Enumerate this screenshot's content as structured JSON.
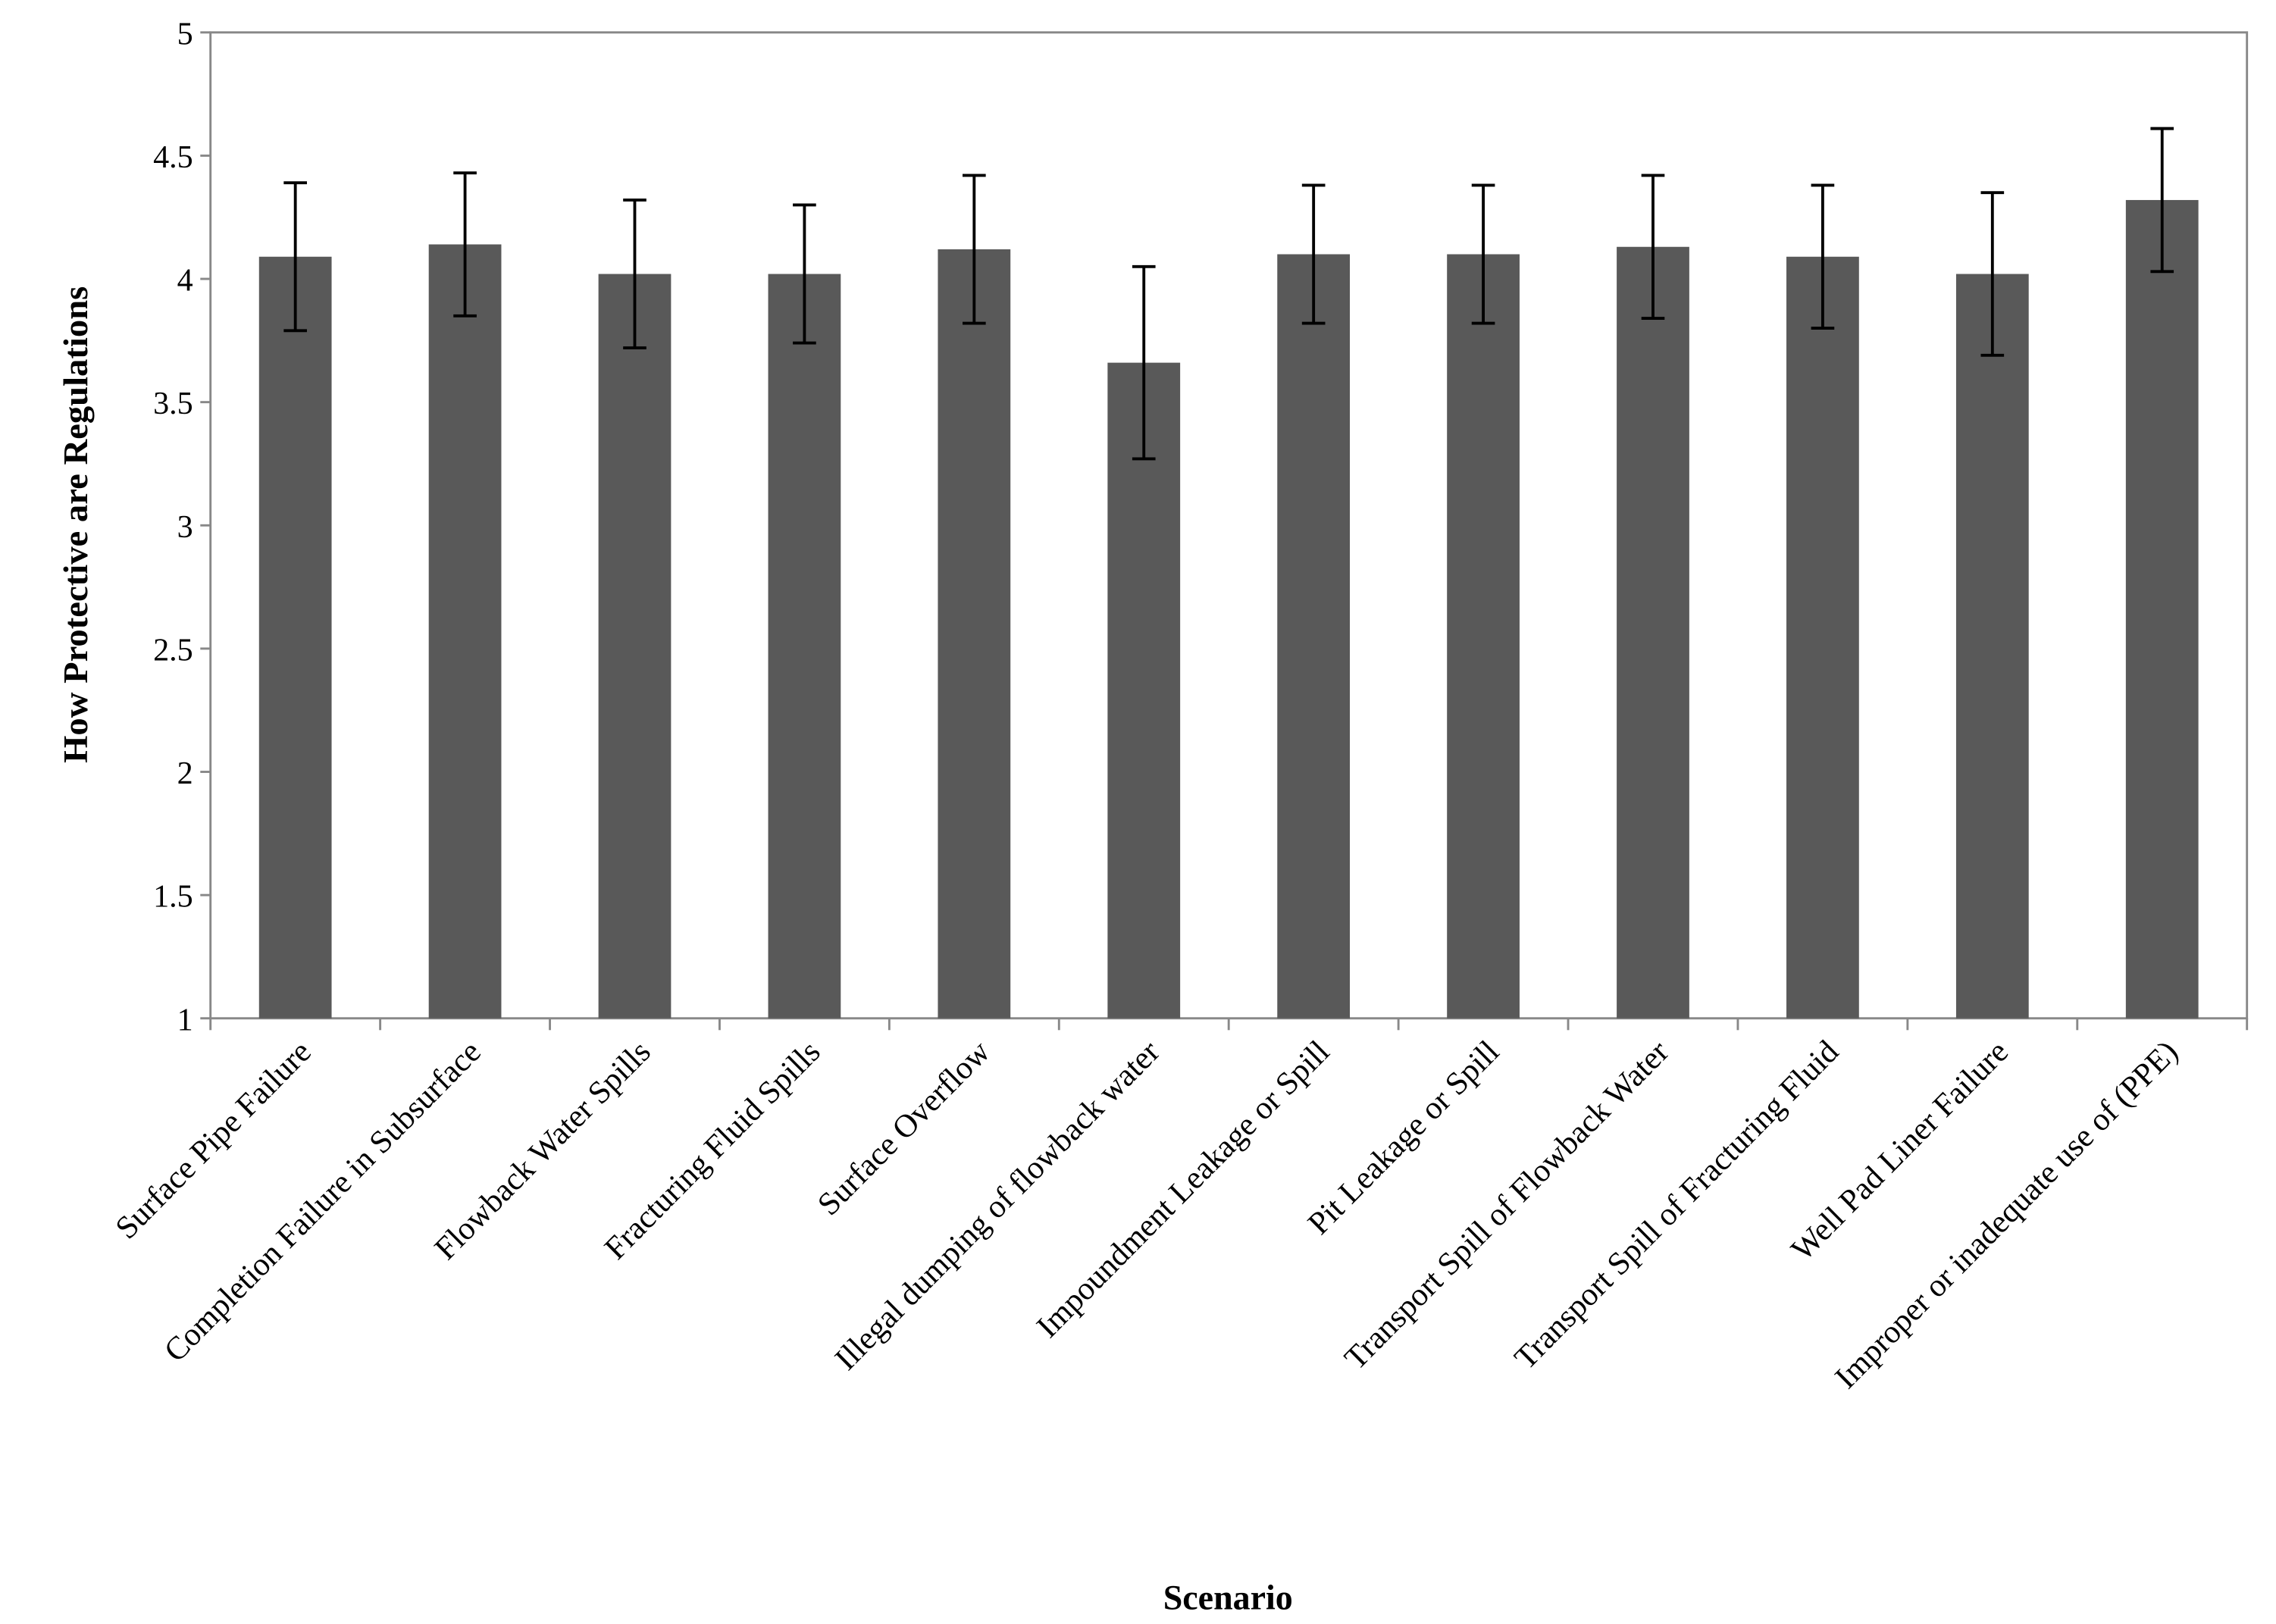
{
  "chart_data": {
    "type": "bar",
    "x_label": "Scenario",
    "y_label": "How Protective are Regulations",
    "categories": [
      "Surface Pipe Failure",
      "Completion Failure in Subsurface",
      "Flowback Water Spills",
      "Fracturing Fluid Spills",
      "Surface Overflow",
      "Illegal dumping of flowback water",
      "Impoundment Leakage or Spill",
      "Pit Leakage or Spill",
      "Transport Spill of Flowback Water",
      "Transport Spill of Fracturing Fluid",
      "Well Pad Liner Failure",
      "Improper or inadequate use of (PPE)"
    ],
    "values": [
      4.09,
      4.14,
      4.02,
      4.02,
      4.12,
      3.66,
      4.1,
      4.1,
      4.13,
      4.09,
      4.02,
      4.32
    ],
    "errors": [
      0.3,
      0.29,
      0.3,
      0.28,
      0.3,
      0.39,
      0.28,
      0.28,
      0.29,
      0.29,
      0.33,
      0.29
    ],
    "color": "#595959",
    "ylim": [
      1,
      5
    ],
    "yticks": [
      1,
      1.5,
      2,
      2.5,
      3,
      3.5,
      4,
      4.5,
      5
    ]
  }
}
